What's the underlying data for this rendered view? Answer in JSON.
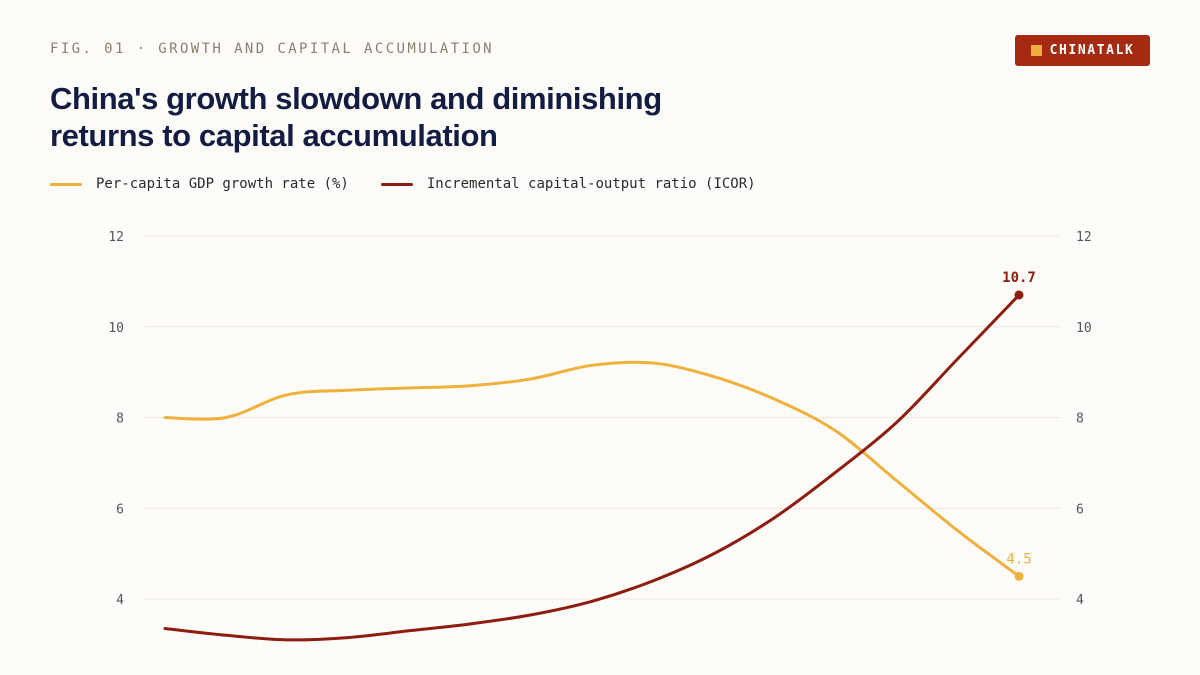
{
  "header": {
    "fig_label": "FIG. 01 · GROWTH AND CAPITAL ACCUMULATION",
    "brand": "CHINATALK",
    "title_line1": "China's growth slowdown and diminishing",
    "title_line2": "returns to capital accumulation"
  },
  "colors": {
    "gdp": "#f0b03c",
    "icor": "#8e1c0f",
    "grid": "#ece7da"
  },
  "chart_data": {
    "type": "line",
    "title": "China's growth slowdown and diminishing returns to capital accumulation",
    "xlabel": "",
    "ylabel": "",
    "ylim": [
      3,
      12
    ],
    "yticks": [
      12,
      10,
      8,
      6,
      4
    ],
    "grid": true,
    "legend": "top-left",
    "series": [
      {
        "name": "Per-capita GDP growth rate (%)",
        "color": "#f0b03c",
        "values": [
          8.0,
          8.0,
          8.5,
          8.6,
          8.65,
          8.7,
          8.85,
          9.15,
          9.2,
          8.9,
          8.4,
          7.7,
          6.6,
          5.5,
          4.5
        ],
        "end_label": "4.5"
      },
      {
        "name": "Incremental capital-output ratio (ICOR)",
        "color": "#8e1c0f",
        "values": [
          3.35,
          3.2,
          3.1,
          3.15,
          3.3,
          3.45,
          3.65,
          3.95,
          4.4,
          5.0,
          5.8,
          6.8,
          7.9,
          9.3,
          10.7
        ],
        "end_label": "10.7"
      }
    ]
  }
}
